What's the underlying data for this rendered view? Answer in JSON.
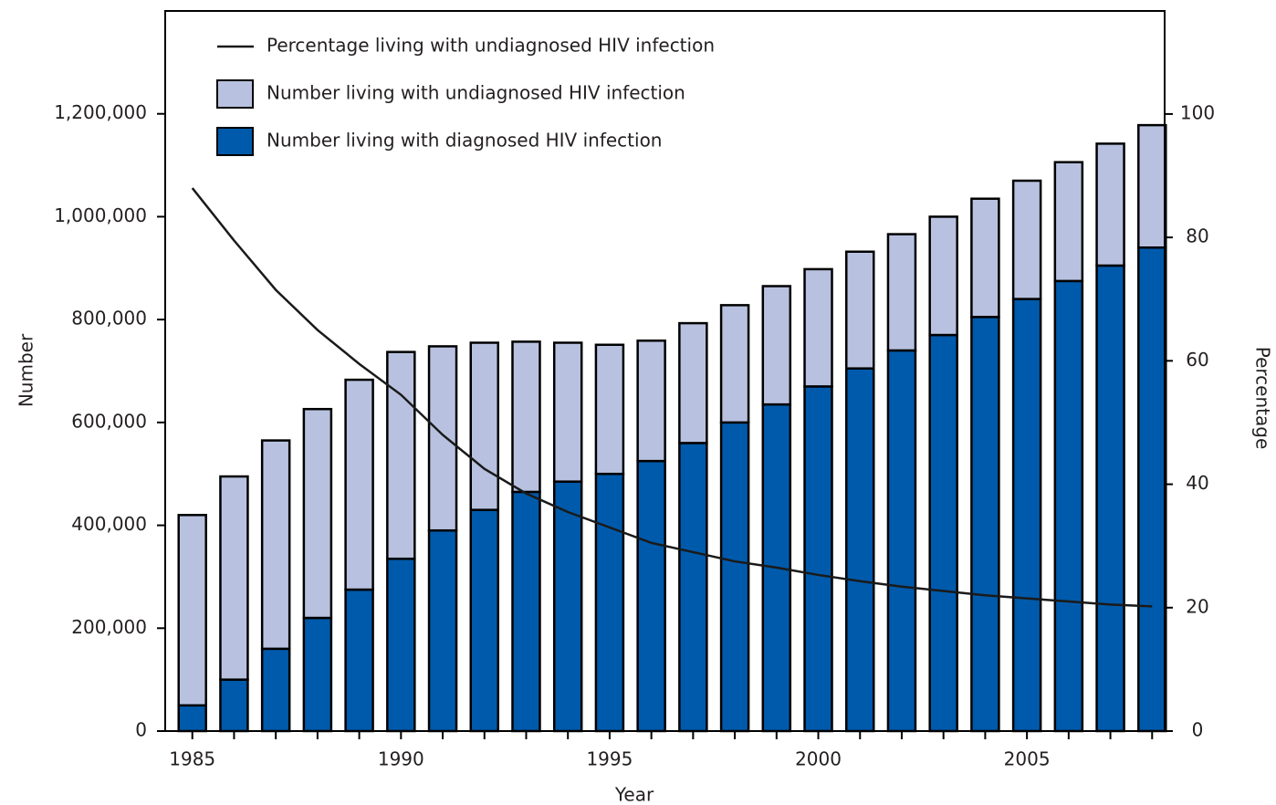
{
  "chart_data": {
    "type": "bar",
    "stacked": true,
    "x": [
      1985,
      1986,
      1987,
      1988,
      1989,
      1990,
      1991,
      1992,
      1993,
      1994,
      1995,
      1996,
      1997,
      1998,
      1999,
      2000,
      2001,
      2002,
      2003,
      2004,
      2005,
      2006,
      2007,
      2008
    ],
    "series": [
      {
        "name": "Percentage living with undiagnosed HIV infection",
        "type": "line",
        "axis": "y2",
        "color": "#1a1a1a",
        "values": [
          88,
          79.5,
          71.5,
          65,
          59.5,
          54.5,
          48,
          42.5,
          38.5,
          35.5,
          33,
          30.5,
          29,
          27.5,
          26.5,
          25.3,
          24.3,
          23.4,
          22.7,
          22,
          21.5,
          21,
          20.5,
          20.2
        ]
      },
      {
        "name": "Number living with undiagnosed HIV infection",
        "type": "bar",
        "color": "#b8c2e0",
        "values": [
          370000,
          395000,
          405000,
          406000,
          408000,
          402000,
          358000,
          325000,
          292000,
          270000,
          251000,
          234000,
          233000,
          228000,
          230000,
          228000,
          227000,
          226000,
          230000,
          230000,
          230000,
          231000,
          237000,
          238000
        ]
      },
      {
        "name": "Number living with diagnosed HIV infection",
        "type": "bar",
        "color": "#005aab",
        "values": [
          50000,
          100000,
          160000,
          220000,
          275000,
          335000,
          390000,
          430000,
          465000,
          485000,
          500000,
          525000,
          560000,
          600000,
          635000,
          670000,
          705000,
          740000,
          770000,
          805000,
          840000,
          875000,
          905000,
          940000
        ]
      }
    ],
    "xlabel": "Year",
    "ylabel": "Number",
    "y2label": "Percentage",
    "xlim": [
      1984.35,
      2008.3
    ],
    "xticks": [
      1985,
      1990,
      1995,
      2000,
      2005
    ],
    "ylim": [
      0,
      1400000
    ],
    "yticks": [
      0,
      {
        "value": 200000,
        "label": "200,000"
      },
      {
        "value": 400000,
        "label": "400,000"
      },
      {
        "value": 600000,
        "label": "600,000"
      },
      {
        "value": 800000,
        "label": "800,000"
      },
      {
        "value": 1000000,
        "label": "1,000,000"
      },
      {
        "value": 1200000,
        "label": "1,200,000"
      }
    ],
    "y2lim": [
      0,
      116.7
    ],
    "y2ticks": [
      0,
      20,
      40,
      60,
      80,
      100
    ],
    "legend": "upper left"
  }
}
